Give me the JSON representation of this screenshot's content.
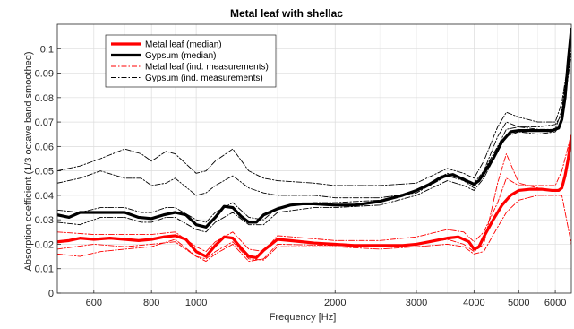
{
  "chart_data": {
    "type": "line",
    "title": "Metal leaf with shellac",
    "xlabel": "Frequency [Hz]",
    "ylabel": "Absorption coefficient (1/3 octave band smoothed)",
    "xscale": "log",
    "xlim": [
      500,
      6500
    ],
    "ylim": [
      0,
      0.11
    ],
    "grid": true,
    "legend_position": "top-left",
    "x_ticks": [
      600,
      800,
      1000,
      2000,
      3000,
      4000,
      5000,
      6000
    ],
    "x_tick_labels": [
      "600",
      "800",
      "1000",
      "2000",
      "3000",
      "4000",
      "5000",
      "6000"
    ],
    "y_ticks": [
      0,
      0.01,
      0.02,
      0.03,
      0.04,
      0.05,
      0.06,
      0.07,
      0.08,
      0.09,
      0.1
    ],
    "y_tick_labels": [
      "0",
      "0.01",
      "0.02",
      "0.03",
      "0.04",
      "0.05",
      "0.06",
      "0.07",
      "0.08",
      "0.09",
      "0.1"
    ],
    "series": [
      {
        "name": "Metal leaf (median)",
        "color": "#ff0000",
        "style": "solid",
        "width": "thick",
        "x": [
          500,
          530,
          560,
          600,
          650,
          700,
          750,
          800,
          850,
          900,
          950,
          1000,
          1050,
          1100,
          1150,
          1200,
          1250,
          1300,
          1350,
          1400,
          1500,
          1600,
          1700,
          1800,
          2000,
          2200,
          2500,
          2800,
          3000,
          3200,
          3500,
          3700,
          3900,
          4000,
          4100,
          4200,
          4400,
          4600,
          4800,
          5000,
          5300,
          5600,
          5900,
          6100,
          6200,
          6300,
          6400,
          6500
        ],
        "y": [
          0.021,
          0.0215,
          0.0225,
          0.022,
          0.0225,
          0.022,
          0.0215,
          0.022,
          0.023,
          0.0235,
          0.022,
          0.017,
          0.015,
          0.0195,
          0.023,
          0.0225,
          0.0185,
          0.015,
          0.0145,
          0.0175,
          0.022,
          0.0215,
          0.021,
          0.0205,
          0.02,
          0.0195,
          0.0195,
          0.0195,
          0.02,
          0.021,
          0.0225,
          0.023,
          0.021,
          0.018,
          0.019,
          0.023,
          0.03,
          0.036,
          0.04,
          0.042,
          0.0425,
          0.0425,
          0.042,
          0.042,
          0.043,
          0.048,
          0.055,
          0.064
        ]
      },
      {
        "name": "Gypsum (median)",
        "color": "#000000",
        "style": "solid",
        "width": "thick",
        "x": [
          500,
          530,
          560,
          600,
          650,
          700,
          750,
          800,
          850,
          900,
          950,
          1000,
          1050,
          1100,
          1150,
          1200,
          1250,
          1300,
          1350,
          1400,
          1500,
          1600,
          1700,
          1800,
          2000,
          2200,
          2500,
          2800,
          3000,
          3200,
          3400,
          3600,
          3800,
          4000,
          4100,
          4200,
          4400,
          4600,
          4800,
          5000,
          5300,
          5600,
          5900,
          6100,
          6200,
          6300,
          6400,
          6500
        ],
        "y": [
          0.032,
          0.031,
          0.033,
          0.033,
          0.033,
          0.033,
          0.031,
          0.0305,
          0.032,
          0.033,
          0.032,
          0.028,
          0.027,
          0.031,
          0.0355,
          0.035,
          0.0315,
          0.029,
          0.029,
          0.032,
          0.0345,
          0.036,
          0.0365,
          0.0365,
          0.036,
          0.036,
          0.0375,
          0.04,
          0.042,
          0.0445,
          0.0475,
          0.0485,
          0.0465,
          0.0445,
          0.046,
          0.049,
          0.055,
          0.062,
          0.066,
          0.0665,
          0.0665,
          0.0665,
          0.0665,
          0.0675,
          0.071,
          0.08,
          0.095,
          0.108
        ]
      },
      {
        "name": "Metal leaf (ind. measurements)",
        "color": "#ff0000",
        "style": "dashdot",
        "width": "thin",
        "x": [
          500,
          600,
          700,
          800,
          900,
          1000,
          1050,
          1100,
          1200,
          1300,
          1400,
          1500,
          2000,
          2500,
          3000,
          3500,
          3800,
          4000,
          4200,
          4500,
          4700,
          5000,
          5500,
          6000,
          6200,
          6500
        ],
        "y": [
          0.025,
          0.024,
          0.024,
          0.024,
          0.025,
          0.019,
          0.017,
          0.021,
          0.025,
          0.018,
          0.017,
          0.0235,
          0.0215,
          0.0215,
          0.023,
          0.026,
          0.025,
          0.021,
          0.025,
          0.037,
          0.047,
          0.044,
          0.044,
          0.044,
          0.05,
          0.065
        ]
      },
      {
        "name": "Metal leaf (ind. measurements)",
        "color": "#ff0000",
        "style": "dashdot",
        "width": "thin",
        "x": [
          500,
          600,
          700,
          800,
          900,
          1000,
          1050,
          1100,
          1200,
          1300,
          1400,
          1500,
          2000,
          2500,
          3000,
          3500,
          3800,
          4000,
          4200,
          4500,
          4700,
          5000,
          5500,
          6000,
          6200,
          6500
        ],
        "y": [
          0.018,
          0.02,
          0.019,
          0.02,
          0.021,
          0.015,
          0.014,
          0.017,
          0.021,
          0.014,
          0.0135,
          0.019,
          0.019,
          0.018,
          0.019,
          0.02,
          0.019,
          0.016,
          0.017,
          0.027,
          0.033,
          0.038,
          0.04,
          0.04,
          0.04,
          0.02
        ]
      },
      {
        "name": "Metal leaf (ind. measurements)",
        "color": "#ff0000",
        "style": "dashdot",
        "width": "thin",
        "x": [
          500,
          560,
          620,
          700,
          800,
          900,
          1000,
          1050,
          1100,
          1200,
          1300,
          1400,
          1500,
          2000,
          2500,
          3000,
          3500,
          3800,
          4000,
          4200,
          4500,
          4700,
          5000,
          5500,
          6000,
          6200,
          6500
        ],
        "y": [
          0.016,
          0.015,
          0.017,
          0.018,
          0.019,
          0.022,
          0.015,
          0.013,
          0.016,
          0.02,
          0.013,
          0.014,
          0.02,
          0.0195,
          0.019,
          0.02,
          0.022,
          0.02,
          0.017,
          0.02,
          0.045,
          0.057,
          0.045,
          0.043,
          0.042,
          0.043,
          0.06
        ]
      },
      {
        "name": "Gypsum (ind. measurements)",
        "color": "#000000",
        "style": "dashdot",
        "width": "thin",
        "x": [
          500,
          560,
          620,
          700,
          760,
          800,
          860,
          900,
          1000,
          1050,
          1100,
          1200,
          1300,
          1400,
          1500,
          1800,
          2000,
          2500,
          3000,
          3500,
          3800,
          4000,
          4200,
          4500,
          4700,
          5000,
          5500,
          6000,
          6200,
          6500
        ],
        "y": [
          0.05,
          0.052,
          0.055,
          0.059,
          0.057,
          0.054,
          0.058,
          0.057,
          0.049,
          0.05,
          0.054,
          0.059,
          0.05,
          0.047,
          0.046,
          0.045,
          0.044,
          0.044,
          0.045,
          0.051,
          0.049,
          0.047,
          0.054,
          0.068,
          0.074,
          0.072,
          0.07,
          0.07,
          0.078,
          0.103
        ]
      },
      {
        "name": "Gypsum (ind. measurements)",
        "color": "#000000",
        "style": "dashdot",
        "width": "thin",
        "x": [
          500,
          560,
          620,
          700,
          760,
          800,
          860,
          900,
          1000,
          1050,
          1100,
          1200,
          1300,
          1400,
          1500,
          1800,
          2000,
          2500,
          3000,
          3500,
          3800,
          4000,
          4200,
          4500,
          4700,
          5000,
          5500,
          6000,
          6200,
          6500
        ],
        "y": [
          0.045,
          0.047,
          0.05,
          0.047,
          0.047,
          0.044,
          0.045,
          0.047,
          0.04,
          0.041,
          0.044,
          0.048,
          0.043,
          0.041,
          0.04,
          0.04,
          0.039,
          0.039,
          0.041,
          0.048,
          0.046,
          0.043,
          0.05,
          0.064,
          0.07,
          0.068,
          0.067,
          0.067,
          0.075,
          0.105
        ]
      },
      {
        "name": "Gypsum (ind. measurements)",
        "color": "#000000",
        "style": "dashdot",
        "width": "thin",
        "x": [
          500,
          560,
          620,
          700,
          760,
          800,
          860,
          900,
          1000,
          1050,
          1100,
          1200,
          1300,
          1400,
          1500,
          1800,
          2000,
          2500,
          3000,
          3500,
          3800,
          4000,
          4200,
          4500,
          4700,
          5000,
          5500,
          6000,
          6200,
          6500
        ],
        "y": [
          0.034,
          0.033,
          0.035,
          0.035,
          0.033,
          0.033,
          0.035,
          0.035,
          0.03,
          0.029,
          0.033,
          0.037,
          0.031,
          0.03,
          0.035,
          0.037,
          0.037,
          0.038,
          0.042,
          0.049,
          0.047,
          0.045,
          0.05,
          0.06,
          0.067,
          0.068,
          0.068,
          0.069,
          0.073,
          0.1
        ]
      },
      {
        "name": "Gypsum (ind. measurements)",
        "color": "#000000",
        "style": "dashdot",
        "width": "thin",
        "x": [
          500,
          560,
          620,
          700,
          760,
          800,
          860,
          900,
          1000,
          1050,
          1100,
          1200,
          1300,
          1400,
          1500,
          1800,
          2000,
          2500,
          3000,
          3500,
          3800,
          4000,
          4200,
          4500,
          4700,
          5000,
          5500,
          6000,
          6200,
          6500
        ],
        "y": [
          0.029,
          0.028,
          0.031,
          0.031,
          0.029,
          0.029,
          0.031,
          0.031,
          0.026,
          0.025,
          0.029,
          0.033,
          0.028,
          0.028,
          0.033,
          0.035,
          0.035,
          0.036,
          0.04,
          0.046,
          0.044,
          0.042,
          0.047,
          0.058,
          0.064,
          0.066,
          0.065,
          0.066,
          0.07,
          0.098
        ]
      }
    ],
    "legend_entries": [
      {
        "label": "Metal leaf (median)",
        "color": "#ff0000",
        "style": "solid",
        "width": "thick"
      },
      {
        "label": "Gypsum (median)",
        "color": "#000000",
        "style": "solid",
        "width": "thick"
      },
      {
        "label": "Metal leaf (ind. measurements)",
        "color": "#ff0000",
        "style": "dashdot",
        "width": "thin"
      },
      {
        "label": "Gypsum (ind. measurements)",
        "color": "#000000",
        "style": "dashdot",
        "width": "thin"
      }
    ]
  }
}
